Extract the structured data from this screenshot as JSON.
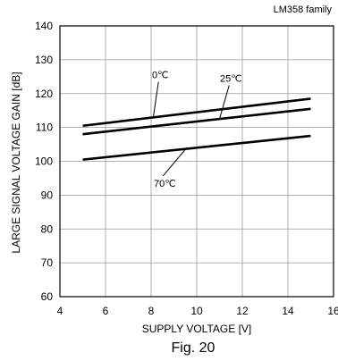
{
  "header_note": "LM358  family",
  "figure_caption": "Fig. 20",
  "chart_data": {
    "type": "line",
    "title": "",
    "xlabel": "SUPPLY VOLTAGE [V]",
    "ylabel": "LARGE SIGNAL VOLTAGE GAIN [dB]",
    "xlim": [
      4,
      16
    ],
    "ylim": [
      60,
      140
    ],
    "xticks": [
      4,
      6,
      8,
      10,
      12,
      14,
      16
    ],
    "xtick_labels": [
      "4",
      "6",
      "8",
      "10",
      "12",
      "14",
      "16"
    ],
    "yticks": [
      60,
      70,
      80,
      90,
      100,
      110,
      120,
      130,
      140
    ],
    "ytick_labels": [
      "60",
      "70",
      "80",
      "90",
      "100",
      "110",
      "120",
      "130",
      "140"
    ],
    "grid": true,
    "series": [
      {
        "name": "0℃",
        "x": [
          5,
          15
        ],
        "y": [
          110.5,
          118.5
        ]
      },
      {
        "name": "25℃",
        "x": [
          5,
          15
        ],
        "y": [
          108,
          115.5
        ]
      },
      {
        "name": "70℃",
        "x": [
          5,
          15
        ],
        "y": [
          100.5,
          107.5
        ]
      }
    ],
    "annotations": [
      {
        "text": "0℃",
        "series": "0℃",
        "label_at": [
          8.4,
          124.5
        ],
        "leader_to": [
          8.1,
          113.2
        ]
      },
      {
        "text": "25℃",
        "series": "25℃",
        "label_at": [
          11.5,
          123.5
        ],
        "leader_to": [
          11.0,
          112.5
        ]
      },
      {
        "text": "70℃",
        "series": "70℃",
        "label_at": [
          8.6,
          92.5
        ],
        "leader_to": [
          9.5,
          103.5
        ]
      }
    ]
  }
}
